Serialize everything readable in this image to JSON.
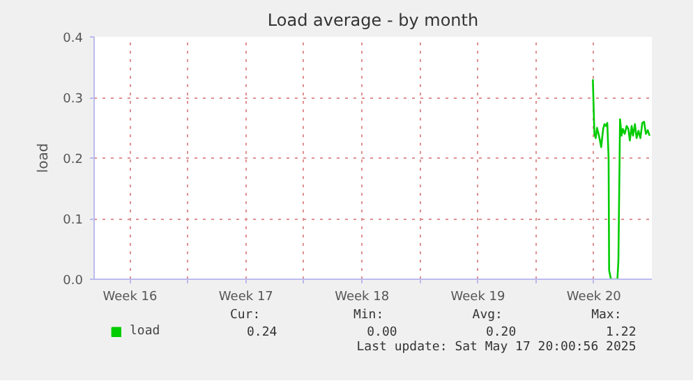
{
  "chart_data": {
    "type": "line",
    "title": "Load average - by month",
    "ylabel": "load",
    "xlim": [
      "2025-04-14T08:00",
      "2025-05-18T00:00"
    ],
    "xticks": [
      {
        "value": "2025-04-16T12:00",
        "label": "Week 16"
      },
      {
        "value": "2025-04-20",
        "label": null
      },
      {
        "value": "2025-04-23T12:00",
        "label": "Week 17"
      },
      {
        "value": "2025-04-27",
        "label": null
      },
      {
        "value": "2025-04-30T12:00",
        "label": "Week 18"
      },
      {
        "value": "2025-05-04",
        "label": null
      },
      {
        "value": "2025-05-07T12:00",
        "label": "Week 19"
      },
      {
        "value": "2025-05-11",
        "label": null
      },
      {
        "value": "2025-05-14T12:00",
        "label": "Week 20"
      }
    ],
    "ylim": [
      0,
      0.4
    ],
    "yticks": [
      {
        "value": 0,
        "label": "0.0"
      },
      {
        "value": 0.1,
        "label": "0.1"
      },
      {
        "value": 0.2,
        "label": "0.2"
      },
      {
        "value": 0.3,
        "label": "0.3"
      },
      {
        "value": 0.4,
        "label": "0.4"
      }
    ],
    "grid": true,
    "legend": "bottom left",
    "series": [
      {
        "name": "load",
        "color": "#00cc00",
        "x": [
          "2025-05-14T10:30",
          "2025-05-14T12:45",
          "2025-05-14T14:40",
          "2025-05-14T16:30",
          "2025-05-14T19:25",
          "2025-05-14T22:35",
          "2025-05-15T01:25",
          "2025-05-15T03:20",
          "2025-05-15T05:30",
          "2025-05-15T07:25",
          "2025-05-15T09:20",
          "2025-05-15T10:05",
          "2025-05-15T12:45",
          "2025-05-15T22:05",
          "2025-05-15T23:30",
          "2025-05-16T01:55",
          "2025-05-16T04:05",
          "2025-05-16T06:00",
          "2025-05-16T08:40",
          "2025-05-16T11:30",
          "2025-05-16T13:55",
          "2025-05-16T16:05",
          "2025-05-16T18:45",
          "2025-05-16T20:40",
          "2025-05-16T23:30",
          "2025-05-17T01:55",
          "2025-05-17T04:35",
          "2025-05-17T07:25",
          "2025-05-17T10:05",
          "2025-05-17T12:45",
          "2025-05-17T15:20",
          "2025-05-17T18:00",
          "2025-05-17T20:40"
        ],
        "values": [
          0.33,
          0.24,
          0.233,
          0.25,
          0.237,
          0.218,
          0.248,
          0.256,
          0.253,
          0.258,
          0.2,
          0.015,
          0.0,
          0.0,
          0.03,
          0.264,
          0.237,
          0.248,
          0.24,
          0.253,
          0.248,
          0.229,
          0.253,
          0.237,
          0.256,
          0.233,
          0.245,
          0.233,
          0.258,
          0.26,
          0.24,
          0.246,
          0.237
        ]
      }
    ],
    "annotations": [
      "Cur:",
      "Min:",
      "Avg:",
      "Max:",
      "0.24",
      "0.00",
      "0.20",
      "1.22",
      "Last update: Sat May 17 20:00:56 2025"
    ]
  }
}
